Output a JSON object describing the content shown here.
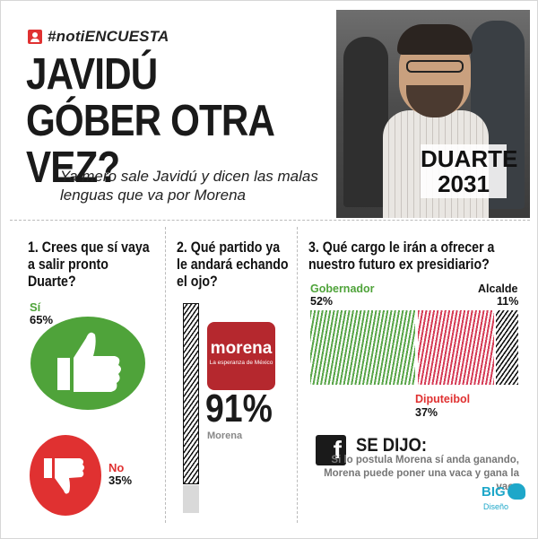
{
  "header": {
    "tag": "#notiENCUESTA",
    "headline": "JAVIDÚ GÓBER OTRA VEZ?",
    "subhead": "Ya mero sale Javidú y dicen las malas lenguas que va por Morena",
    "photo_caption": "DUARTE 2031"
  },
  "q1": {
    "title": "1. Crees que sí vaya a salir pronto Duarte?",
    "yes_label": "Sí",
    "yes_value": "65%",
    "no_label": "No",
    "no_value": "35%"
  },
  "q2": {
    "title": "2. Qué partido ya le andará echando el ojo?",
    "logo_name": "morena",
    "logo_sub": "La esperanza de México",
    "percent": "91%",
    "party": "Morena"
  },
  "q3": {
    "title": "3. Qué cargo le irán a ofrecer a nuestro futuro ex presidiario?",
    "options": [
      {
        "label": "Gobernador",
        "value": "52%",
        "color": "#5aa64a"
      },
      {
        "label": "Diputeibol",
        "value": "37%",
        "color": "#d63d57"
      },
      {
        "label": "Alcalde",
        "value": "11%",
        "color": "#111111"
      }
    ]
  },
  "se_dijo": {
    "icon": "facebook-icon",
    "title": "SE DIJO:",
    "text": "Si lo postula Morena sí anda ganando, Morena puede poner una vaca y gana la vaca"
  },
  "brand": {
    "big": "BIG",
    "sub": "Diseño"
  },
  "chart_data": [
    {
      "type": "pie",
      "categories": [
        "Sí",
        "No"
      ],
      "values": [
        65,
        35
      ],
      "title": "1. Crees que sí vaya a salir pronto Duarte?"
    },
    {
      "type": "bar",
      "categories": [
        "Morena"
      ],
      "values": [
        91
      ],
      "title": "2. Qué partido ya le andará echando el ojo?"
    },
    {
      "type": "bar",
      "categories": [
        "Gobernador",
        "Diputeibol",
        "Alcalde"
      ],
      "values": [
        52,
        37,
        11
      ],
      "title": "3. Qué cargo le irán a ofrecer a nuestro futuro ex presidiario?"
    }
  ]
}
